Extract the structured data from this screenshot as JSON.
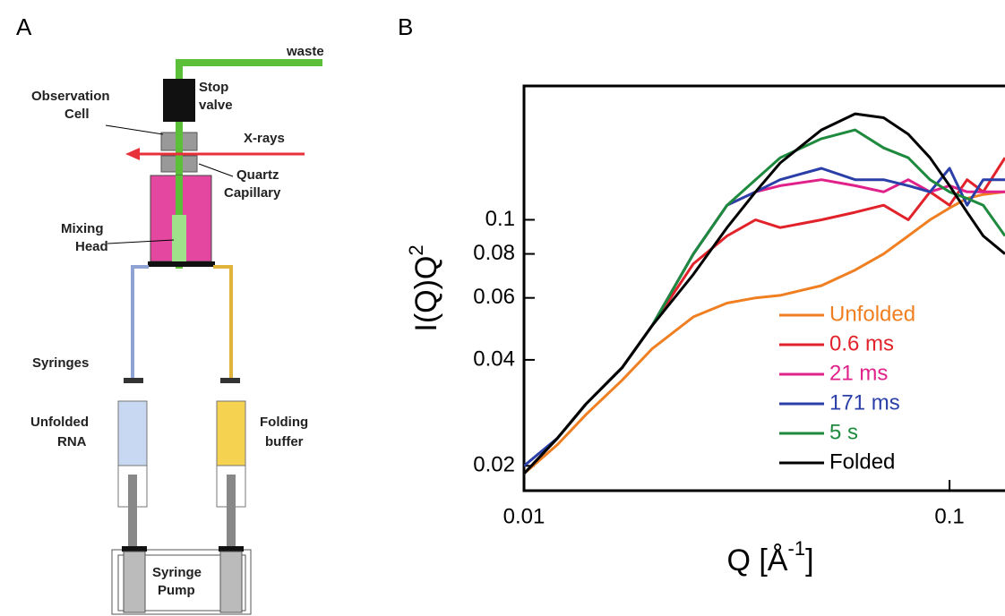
{
  "panel_a": {
    "label": "A",
    "waste": "waste",
    "stop_valve": [
      "Stop",
      "valve"
    ],
    "observation_cell": [
      "Observation",
      "Cell"
    ],
    "x_rays": "X-rays",
    "quartz_capillary": [
      "Quartz",
      "Capillary"
    ],
    "mixing_head": [
      "Mixing",
      "Head"
    ],
    "syringes": "Syringes",
    "unfolded_rna": [
      "Unfolded",
      "RNA"
    ],
    "folding_buffer": [
      "Folding",
      "buffer"
    ],
    "syringe_pump": [
      "Syringe",
      "Pump"
    ]
  },
  "chart_data": {
    "type": "line",
    "panel_label": "B",
    "x_label": "Q [Å",
    "x_label_sup": "-1",
    "x_label_end": "]",
    "y_label": "I(Q)Q",
    "y_label_sup": "2",
    "x_scale": "log",
    "y_scale": "log",
    "legend": "lower right",
    "xlim": [
      0.01,
      0.135
    ],
    "ylim": [
      0.017,
      0.24
    ],
    "xticks": [
      0.01,
      0.1
    ],
    "yticks": [
      0.02,
      0.04,
      0.06,
      0.08,
      0.1
    ],
    "x": [
      0.01,
      0.012,
      0.014,
      0.017,
      0.02,
      0.025,
      0.03,
      0.035,
      0.04,
      0.05,
      0.06,
      0.07,
      0.08,
      0.09,
      0.1,
      0.11,
      0.12,
      0.135
    ],
    "series": [
      {
        "name": "Unfolded",
        "color": "#f07f22",
        "values": [
          0.019,
          0.023,
          0.028,
          0.035,
          0.043,
          0.053,
          0.058,
          0.06,
          0.061,
          0.065,
          0.072,
          0.08,
          0.09,
          0.1,
          0.108,
          0.115,
          0.118,
          0.12
        ]
      },
      {
        "name": "0.6 ms",
        "color": "#e2222a",
        "values": [
          0.019,
          0.024,
          0.03,
          0.038,
          0.05,
          0.075,
          0.09,
          0.1,
          0.095,
          0.1,
          0.105,
          0.11,
          0.1,
          0.12,
          0.11,
          0.13,
          0.12,
          0.15
        ]
      },
      {
        "name": "21 ms",
        "color": "#e0218a",
        "values": [
          0.019,
          0.024,
          0.03,
          0.038,
          0.05,
          0.08,
          0.11,
          0.12,
          0.125,
          0.13,
          0.125,
          0.12,
          0.13,
          0.12,
          0.125,
          0.12,
          0.12,
          0.12
        ]
      },
      {
        "name": "171 ms",
        "color": "#2b3fa8",
        "values": [
          0.02,
          0.024,
          0.03,
          0.038,
          0.05,
          0.08,
          0.11,
          0.12,
          0.13,
          0.14,
          0.13,
          0.13,
          0.125,
          0.12,
          0.14,
          0.11,
          0.13,
          0.13
        ]
      },
      {
        "name": "5 s",
        "color": "#1e8a3e",
        "values": [
          0.019,
          0.024,
          0.03,
          0.038,
          0.05,
          0.08,
          0.11,
          0.13,
          0.15,
          0.17,
          0.18,
          0.16,
          0.15,
          0.13,
          0.12,
          0.115,
          0.11,
          0.09
        ]
      },
      {
        "name": "Folded",
        "color": "#000000",
        "values": [
          0.019,
          0.024,
          0.03,
          0.038,
          0.05,
          0.07,
          0.095,
          0.12,
          0.145,
          0.18,
          0.2,
          0.195,
          0.175,
          0.15,
          0.125,
          0.105,
          0.09,
          0.08
        ]
      }
    ]
  }
}
